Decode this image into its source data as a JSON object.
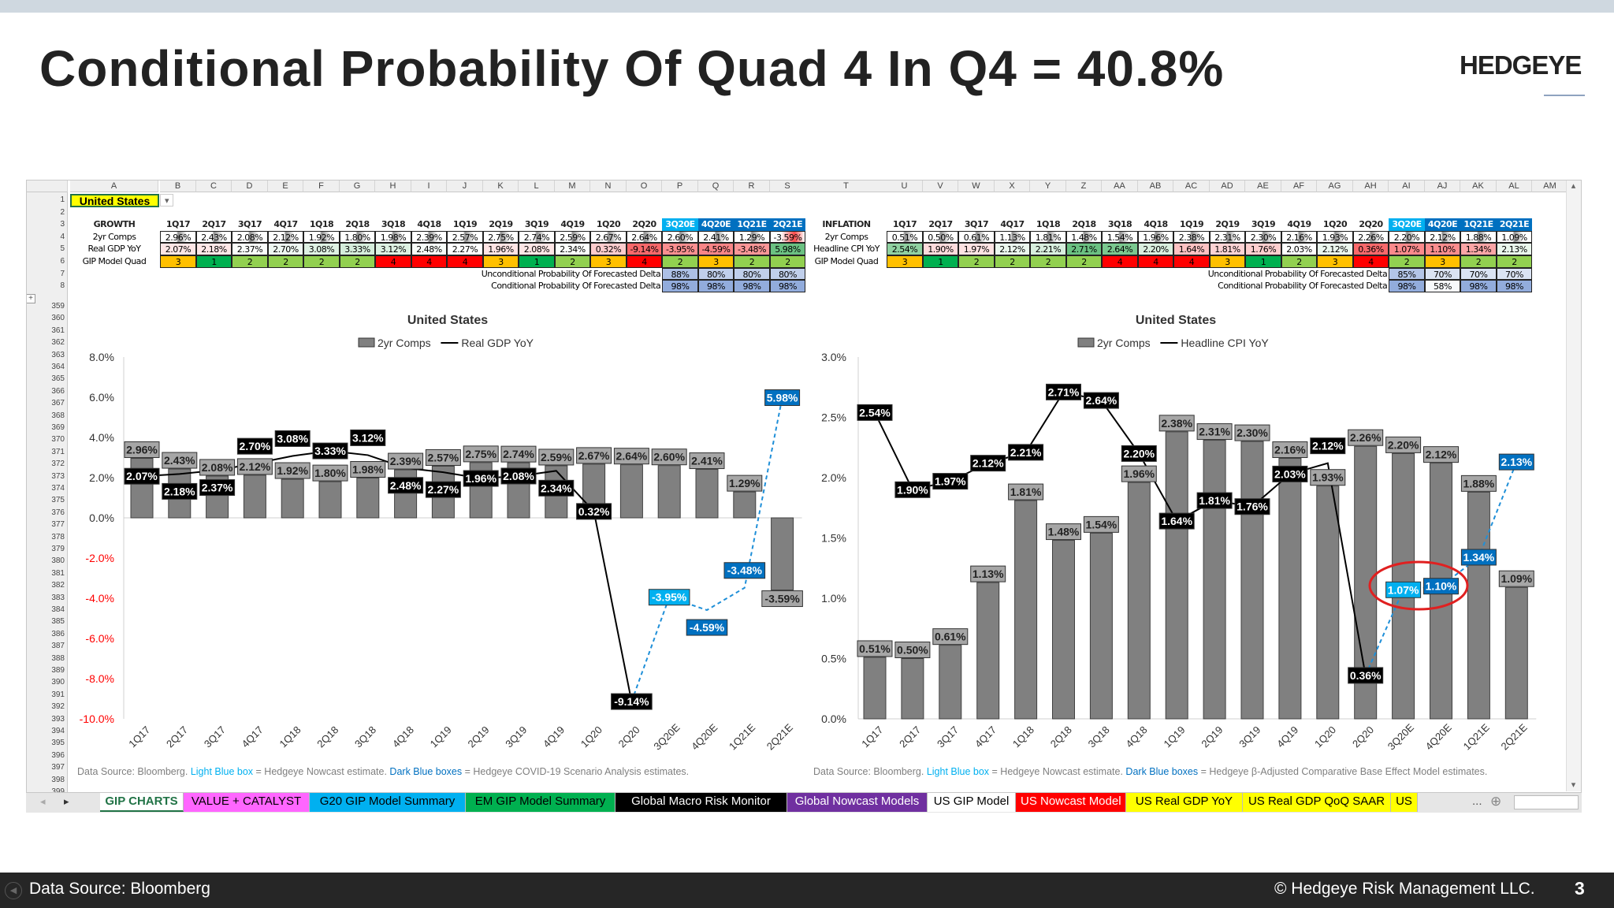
{
  "title": "Conditional Probability Of Quad 4 In Q4 = 40.8%",
  "logo": "HEDGEYE",
  "sheet": {
    "country": "United States",
    "cols_left": [
      "A",
      "B",
      "C",
      "D",
      "E",
      "F",
      "G",
      "H",
      "I",
      "J",
      "K",
      "L",
      "M",
      "N",
      "O",
      "P",
      "Q",
      "R",
      "S"
    ],
    "cols_right": [
      "T",
      "U",
      "V",
      "W",
      "X",
      "Y",
      "Z",
      "AA",
      "AB",
      "AC",
      "AD",
      "AE",
      "AF",
      "AG",
      "AH",
      "AI",
      "AJ",
      "AK",
      "AL",
      "AM"
    ],
    "rows_top": [
      "1",
      "2",
      "3",
      "4",
      "5",
      "6",
      "7",
      "8"
    ],
    "rows_bottom_start": 359,
    "rows_bottom_end": 399,
    "periods": [
      "1Q17",
      "2Q17",
      "3Q17",
      "4Q17",
      "1Q18",
      "2Q18",
      "3Q18",
      "4Q18",
      "1Q19",
      "2Q19",
      "3Q19",
      "4Q19",
      "1Q20",
      "2Q20",
      "3Q20E",
      "4Q20E",
      "1Q21E",
      "2Q21E"
    ],
    "quad_colors": {
      "1": "#00b050",
      "2": "#92d050",
      "3": "#ffc000",
      "4": "#ff0000"
    },
    "nowcast_color": "#00b0f0",
    "scenario_color": "#0070c0",
    "growth": {
      "header": "GROWTH",
      "row1_label": "2yr Comps",
      "row2_label": "Real GDP YoY",
      "row3_label": "GIP Model Quad",
      "comps": [
        2.96,
        2.43,
        2.08,
        2.12,
        1.92,
        1.8,
        1.98,
        2.39,
        2.57,
        2.75,
        2.74,
        2.59,
        2.67,
        2.64,
        2.6,
        2.41,
        1.29,
        -3.59
      ],
      "yoy": [
        2.07,
        2.18,
        2.37,
        2.7,
        3.08,
        3.33,
        3.12,
        2.48,
        2.27,
        1.96,
        2.08,
        2.34,
        0.32,
        -9.14,
        -3.95,
        -4.59,
        -3.48,
        5.98
      ],
      "quad": [
        3,
        1,
        2,
        2,
        2,
        2,
        4,
        4,
        4,
        3,
        1,
        2,
        3,
        4,
        2,
        3,
        2,
        2
      ],
      "uncond_label": "Unconditional Probability Of Forecasted Delta",
      "uncond": [
        "88%",
        "80%",
        "80%",
        "80%"
      ],
      "cond_label": "Conditional Probability Of Forecasted Delta",
      "cond": [
        "98%",
        "98%",
        "98%",
        "98%"
      ]
    },
    "inflation": {
      "header": "INFLATION",
      "row1_label": "2yr Comps",
      "row2_label": "Headline CPI YoY",
      "row3_label": "GIP Model Quad",
      "comps": [
        0.51,
        0.5,
        0.61,
        1.13,
        1.81,
        1.48,
        1.54,
        1.96,
        2.38,
        2.31,
        2.3,
        2.16,
        1.93,
        2.26,
        2.2,
        2.12,
        1.88,
        1.09
      ],
      "yoy": [
        2.54,
        1.9,
        1.97,
        2.12,
        2.21,
        2.71,
        2.64,
        2.2,
        1.64,
        1.81,
        1.76,
        2.03,
        2.12,
        0.36,
        1.07,
        1.1,
        1.34,
        2.13
      ],
      "quad": [
        3,
        1,
        2,
        2,
        2,
        2,
        4,
        4,
        4,
        3,
        1,
        2,
        3,
        4,
        2,
        3,
        2,
        2
      ],
      "uncond_label": "Unconditional Probability Of Forecasted Delta",
      "uncond": [
        "85%",
        "70%",
        "70%",
        "70%"
      ],
      "cond_label": "Conditional Probability Of Forecasted Delta",
      "cond": [
        "98%",
        "58%",
        "98%",
        "98%"
      ]
    }
  },
  "chart_data": [
    {
      "type": "bar+line",
      "title": "United States",
      "legend": [
        "2yr Comps",
        "Real GDP YoY"
      ],
      "legend_position": "top",
      "categories": [
        "1Q17",
        "2Q17",
        "3Q17",
        "4Q17",
        "1Q18",
        "2Q18",
        "3Q18",
        "4Q18",
        "1Q19",
        "2Q19",
        "3Q19",
        "4Q19",
        "1Q20",
        "2Q20",
        "3Q20E",
        "4Q20E",
        "1Q21E",
        "2Q21E"
      ],
      "series": [
        {
          "name": "2yr Comps",
          "type": "bar",
          "values": [
            2.96,
            2.43,
            2.08,
            2.12,
            1.92,
            1.8,
            1.98,
            2.39,
            2.57,
            2.75,
            2.74,
            2.59,
            2.67,
            2.64,
            2.6,
            2.41,
            1.29,
            -3.59
          ]
        },
        {
          "name": "Real GDP YoY",
          "type": "line",
          "values": [
            2.07,
            2.18,
            2.37,
            2.7,
            3.08,
            3.33,
            3.12,
            2.48,
            2.27,
            1.96,
            2.08,
            2.34,
            0.32,
            -9.14,
            -3.95,
            -4.59,
            -3.48,
            5.98
          ]
        }
      ],
      "yticks": [
        "8.0%",
        "6.0%",
        "4.0%",
        "2.0%",
        "0.0%",
        "-2.0%",
        "-4.0%",
        "-6.0%",
        "-8.0%",
        "-10.0%"
      ],
      "ylim": [
        -10,
        8
      ],
      "grid": false,
      "note": {
        "a": "Data Source: Bloomberg. ",
        "b": "Light Blue box",
        "c": " = Hedgeye Nowcast estimate. ",
        "d": "Dark Blue boxes",
        "e": " = Hedgeye COVID-19 Scenario Analysis estimates."
      }
    },
    {
      "type": "bar+line",
      "title": "United States",
      "legend": [
        "2yr Comps",
        "Headline CPI YoY"
      ],
      "legend_position": "top",
      "categories": [
        "1Q17",
        "2Q17",
        "3Q17",
        "4Q17",
        "1Q18",
        "2Q18",
        "3Q18",
        "4Q18",
        "1Q19",
        "2Q19",
        "3Q19",
        "4Q19",
        "1Q20",
        "2Q20",
        "3Q20E",
        "4Q20E",
        "1Q21E",
        "2Q21E"
      ],
      "series": [
        {
          "name": "2yr Comps",
          "type": "bar",
          "values": [
            0.51,
            0.5,
            0.61,
            1.13,
            1.81,
            1.48,
            1.54,
            1.96,
            2.38,
            2.31,
            2.3,
            2.16,
            1.93,
            2.26,
            2.2,
            2.12,
            1.88,
            1.09
          ]
        },
        {
          "name": "Headline CPI YoY",
          "type": "line",
          "values": [
            2.54,
            1.9,
            1.97,
            2.12,
            2.21,
            2.71,
            2.64,
            2.2,
            1.64,
            1.81,
            1.76,
            2.03,
            2.12,
            0.36,
            1.07,
            1.1,
            1.34,
            2.13
          ]
        }
      ],
      "yticks": [
        "3.0%",
        "2.5%",
        "2.0%",
        "1.5%",
        "1.0%",
        "0.5%",
        "0.0%"
      ],
      "ylim": [
        0,
        3
      ],
      "grid": false,
      "note": {
        "a": "Data Source: Bloomberg. ",
        "b": "Light Blue box",
        "c": " = Hedgeye Nowcast estimate. ",
        "d": "Dark Blue boxes",
        "e": " = Hedgeye β-Adjusted Comparative Base Effect Model estimates."
      }
    }
  ],
  "tabs": [
    {
      "label": "GIP CHARTS",
      "bg": "#ffffff",
      "fg": "#217346",
      "active": true
    },
    {
      "label": "VALUE + CATALYST",
      "bg": "#ff66ff",
      "fg": "#000000"
    },
    {
      "label": "G20 GIP Model Summary",
      "bg": "#00b0f0",
      "fg": "#000000"
    },
    {
      "label": "EM GIP Model Summary",
      "bg": "#00b050",
      "fg": "#000000"
    },
    {
      "label": "Global Macro Risk Monitor",
      "bg": "#000000",
      "fg": "#ffffff"
    },
    {
      "label": "Global Nowcast Models",
      "bg": "#7030a0",
      "fg": "#ffffff"
    },
    {
      "label": "US GIP Model",
      "bg": "#ffffff",
      "fg": "#000000"
    },
    {
      "label": "US Nowcast Model",
      "bg": "#ff0000",
      "fg": "#ffffff"
    },
    {
      "label": "US Real GDP YoY",
      "bg": "#ffff00",
      "fg": "#000000"
    },
    {
      "label": "US Real GDP QoQ SAAR",
      "bg": "#ffff00",
      "fg": "#000000"
    },
    {
      "label": "US",
      "bg": "#ffff00",
      "fg": "#000000"
    }
  ],
  "tabs_more": "...",
  "footer": {
    "source": "Data Source: Bloomberg",
    "copyright": "© Hedgeye Risk Management LLC.",
    "page": "3"
  }
}
